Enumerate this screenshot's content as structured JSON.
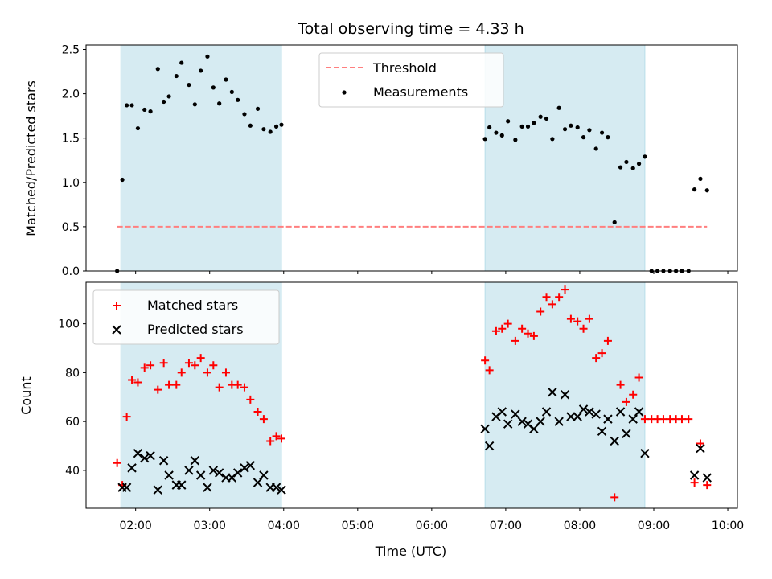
{
  "chart_data": [
    {
      "type": "scatter",
      "title": "Total observing time = 4.33 h",
      "ylabel": "Matched/Predicted stars",
      "xlabel": "",
      "xlim_hours": [
        1.33,
        10.13
      ],
      "ylim": [
        0,
        2.55
      ],
      "yticks": [
        0.0,
        0.5,
        1.0,
        1.5,
        2.0,
        2.5
      ],
      "grid": false,
      "legend": "upper-center",
      "shaded_windows": [
        [
          1.8,
          3.97
        ],
        [
          6.72,
          8.88
        ]
      ],
      "threshold": {
        "name": "Threshold",
        "y": 0.5,
        "x_range": [
          1.75,
          9.72
        ],
        "color": "#ff7f7f"
      },
      "series": [
        {
          "name": "Measurements",
          "color": "#000000",
          "x": [
            1.75,
            1.82,
            1.88,
            1.95,
            2.03,
            2.12,
            2.2,
            2.3,
            2.38,
            2.45,
            2.55,
            2.62,
            2.72,
            2.8,
            2.88,
            2.97,
            3.05,
            3.13,
            3.22,
            3.3,
            3.38,
            3.47,
            3.55,
            3.65,
            3.73,
            3.82,
            3.9,
            3.97,
            6.72,
            6.78,
            6.87,
            6.95,
            7.03,
            7.13,
            7.22,
            7.3,
            7.38,
            7.47,
            7.55,
            7.63,
            7.72,
            7.8,
            7.88,
            7.97,
            8.05,
            8.13,
            8.22,
            8.3,
            8.38,
            8.47,
            8.55,
            8.63,
            8.72,
            8.8,
            8.88,
            8.97,
            9.05,
            9.13,
            9.22,
            9.3,
            9.38,
            9.47,
            9.55,
            9.63,
            9.72
          ],
          "y": [
            0.0,
            1.03,
            1.87,
            1.87,
            1.61,
            1.82,
            1.8,
            2.28,
            1.91,
            1.97,
            2.2,
            2.35,
            2.1,
            1.88,
            2.26,
            2.42,
            2.07,
            1.89,
            2.16,
            2.02,
            1.93,
            1.77,
            1.64,
            1.83,
            1.6,
            1.57,
            1.63,
            1.65,
            1.49,
            1.62,
            1.56,
            1.53,
            1.69,
            1.48,
            1.63,
            1.63,
            1.67,
            1.74,
            1.72,
            1.49,
            1.84,
            1.6,
            1.64,
            1.62,
            1.51,
            1.59,
            1.38,
            1.56,
            1.51,
            0.55,
            1.17,
            1.23,
            1.16,
            1.21,
            1.29,
            0.0,
            0.0,
            0.0,
            0.0,
            0.0,
            0.0,
            0.0,
            0.92,
            1.04,
            0.91
          ]
        }
      ]
    },
    {
      "type": "scatter",
      "title": "",
      "xlabel": "Time (UTC)",
      "ylabel": "Count",
      "xlim_hours": [
        1.33,
        10.13
      ],
      "ylim": [
        24.5,
        117
      ],
      "yticks": [
        40,
        60,
        80,
        100
      ],
      "xticks": [
        "02:00",
        "03:00",
        "04:00",
        "05:00",
        "06:00",
        "07:00",
        "08:00",
        "09:00",
        "10:00"
      ],
      "grid": false,
      "legend": "upper-left",
      "shaded_windows": [
        [
          1.8,
          3.97
        ],
        [
          6.72,
          8.88
        ]
      ],
      "series": [
        {
          "name": "Matched stars",
          "marker": "+",
          "color": "#ff0000",
          "x": [
            1.75,
            1.82,
            1.88,
            1.95,
            2.03,
            2.12,
            2.2,
            2.3,
            2.38,
            2.45,
            2.55,
            2.62,
            2.72,
            2.8,
            2.88,
            2.97,
            3.05,
            3.13,
            3.22,
            3.3,
            3.38,
            3.47,
            3.55,
            3.65,
            3.73,
            3.82,
            3.9,
            3.97,
            6.72,
            6.78,
            6.87,
            6.95,
            7.03,
            7.13,
            7.22,
            7.3,
            7.38,
            7.47,
            7.55,
            7.63,
            7.72,
            7.8,
            7.88,
            7.97,
            8.05,
            8.13,
            8.22,
            8.3,
            8.38,
            8.47,
            8.55,
            8.63,
            8.72,
            8.8,
            8.88,
            8.97,
            9.05,
            9.13,
            9.22,
            9.3,
            9.38,
            9.47,
            9.55,
            9.63,
            9.72
          ],
          "y": [
            43,
            34,
            62,
            77,
            76,
            82,
            83,
            73,
            84,
            75,
            75,
            80,
            84,
            83,
            86,
            80,
            83,
            74,
            80,
            75,
            75,
            74,
            69,
            64,
            61,
            52,
            54,
            53,
            85,
            81,
            97,
            98,
            100,
            93,
            98,
            96,
            95,
            105,
            111,
            108,
            111,
            114,
            102,
            101,
            98,
            102,
            86,
            88,
            93,
            29,
            75,
            68,
            71,
            78,
            61,
            61,
            61,
            61,
            61,
            61,
            61,
            61,
            35,
            51,
            34
          ]
        },
        {
          "name": "Predicted stars",
          "marker": "x",
          "color": "#000000",
          "x": [
            1.82,
            1.88,
            1.95,
            2.03,
            2.12,
            2.2,
            2.3,
            2.38,
            2.45,
            2.55,
            2.62,
            2.72,
            2.8,
            2.88,
            2.97,
            3.05,
            3.13,
            3.22,
            3.3,
            3.38,
            3.47,
            3.55,
            3.65,
            3.73,
            3.82,
            3.9,
            3.97,
            6.72,
            6.78,
            6.87,
            6.95,
            7.03,
            7.13,
            7.22,
            7.3,
            7.38,
            7.47,
            7.55,
            7.63,
            7.72,
            7.8,
            7.88,
            7.97,
            8.05,
            8.13,
            8.22,
            8.3,
            8.38,
            8.47,
            8.55,
            8.63,
            8.72,
            8.8,
            8.88,
            9.55,
            9.63,
            9.72
          ],
          "y": [
            33,
            33,
            41,
            47,
            45,
            46,
            32,
            44,
            38,
            34,
            34,
            40,
            44,
            38,
            33,
            40,
            39,
            37,
            37,
            39,
            41,
            42,
            35,
            38,
            33,
            33,
            32,
            57,
            50,
            62,
            64,
            59,
            63,
            60,
            59,
            57,
            60,
            64,
            72,
            60,
            71,
            62,
            62,
            65,
            64,
            63,
            56,
            61,
            52,
            64,
            55,
            61,
            64,
            47,
            38,
            49,
            37
          ]
        }
      ]
    }
  ]
}
